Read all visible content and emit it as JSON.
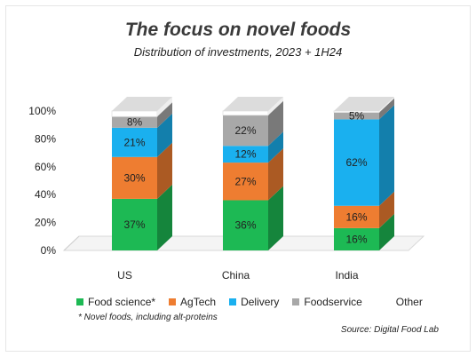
{
  "header": {
    "title": "The focus on novel foods",
    "subtitle": "Distribution of investments, 2023 + 1H24"
  },
  "legend": [
    {
      "label": "Food science*",
      "color": "#1db954"
    },
    {
      "label": "AgTech",
      "color": "#ee7d31"
    },
    {
      "label": "Delivery",
      "color": "#1ab0ef"
    },
    {
      "label": "Foodservice",
      "color": "#a8a8a8"
    },
    {
      "label": "Other",
      "color": "#ffffff"
    }
  ],
  "footnote": "* Novel foods, including alt-proteins",
  "source": "Source: Digital Food Lab",
  "chart_data": {
    "type": "bar",
    "stacked": true,
    "categories": [
      "US",
      "China",
      "India"
    ],
    "series": [
      {
        "name": "Food science*",
        "color": "#1db954",
        "values": [
          37,
          36,
          16
        ],
        "labels": [
          "37%",
          "36%",
          "16%"
        ]
      },
      {
        "name": "AgTech",
        "color": "#ee7d31",
        "values": [
          30,
          27,
          16
        ],
        "labels": [
          "30%",
          "27%",
          "16%"
        ]
      },
      {
        "name": "Delivery",
        "color": "#1ab0ef",
        "values": [
          21,
          12,
          62
        ],
        "labels": [
          "21%",
          "12%",
          "62%"
        ]
      },
      {
        "name": "Foodservice",
        "color": "#a8a8a8",
        "values": [
          8,
          22,
          5
        ],
        "labels": [
          "8%",
          "22%",
          "5%"
        ]
      },
      {
        "name": "Other",
        "color": "#ffffff",
        "values": [
          4,
          3,
          1
        ],
        "labels": [
          "",
          "",
          ""
        ]
      }
    ],
    "ylim": [
      0,
      100
    ],
    "yticks": [
      "0%",
      "20%",
      "40%",
      "60%",
      "80%",
      "100%"
    ],
    "grid": false,
    "legend_position": "bottom"
  }
}
